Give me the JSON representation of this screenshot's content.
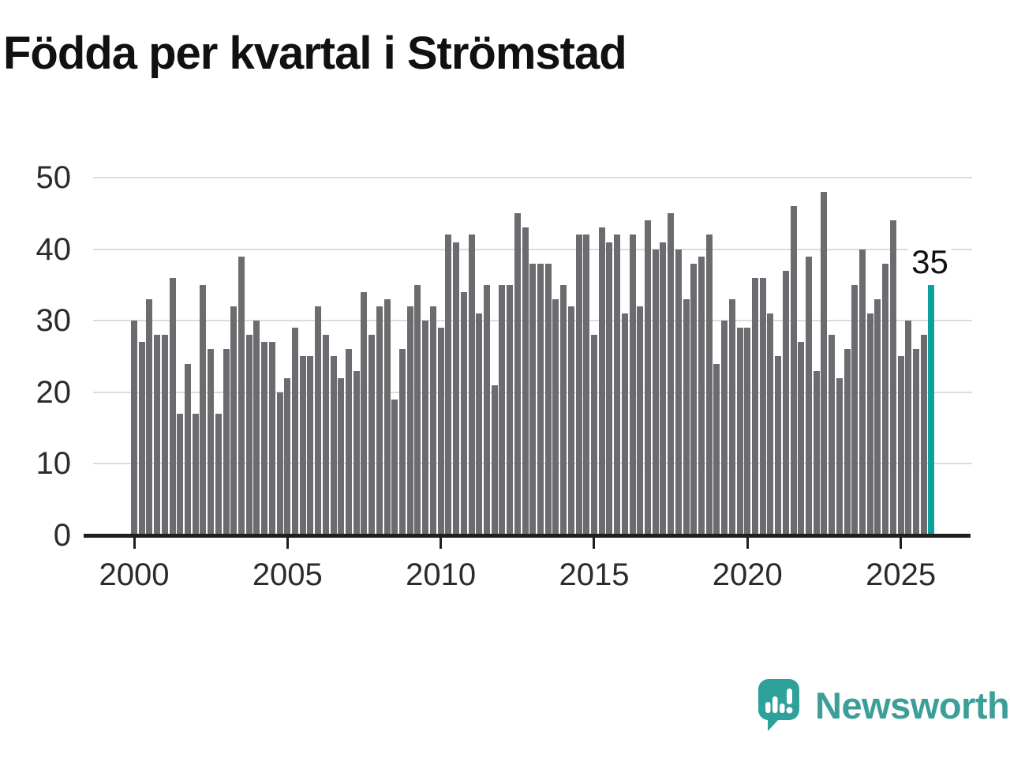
{
  "title": "Födda per kvartal i Strömstad",
  "chart_data": {
    "type": "bar",
    "title": "Födda per kvartal i Strömstad",
    "xlabel": "",
    "ylabel": "",
    "ylim": [
      0,
      50
    ],
    "grid": "horizontal",
    "y_ticks": [
      0,
      10,
      20,
      30,
      40,
      50
    ],
    "x_tick_labels": [
      "2000",
      "2005",
      "2010",
      "2015",
      "2020",
      "2025"
    ],
    "x_tick_bar_indices": [
      0,
      20,
      40,
      60,
      80,
      100
    ],
    "period_start": "2000-Q1",
    "period_frequency": "quarterly",
    "values": [
      30,
      27,
      33,
      28,
      28,
      36,
      17,
      24,
      17,
      35,
      26,
      17,
      26,
      32,
      39,
      28,
      30,
      27,
      27,
      20,
      22,
      29,
      25,
      25,
      32,
      28,
      25,
      22,
      26,
      23,
      34,
      28,
      32,
      33,
      19,
      26,
      32,
      35,
      30,
      32,
      29,
      42,
      41,
      34,
      42,
      31,
      35,
      21,
      35,
      35,
      45,
      43,
      38,
      38,
      38,
      33,
      35,
      32,
      42,
      42,
      28,
      43,
      41,
      42,
      31,
      42,
      32,
      44,
      40,
      41,
      45,
      40,
      33,
      38,
      39,
      42,
      24,
      30,
      33,
      29,
      29,
      36,
      36,
      31,
      25,
      37,
      46,
      27,
      39,
      23,
      48,
      28,
      22,
      26,
      35,
      40,
      31,
      33,
      38,
      44,
      25,
      30,
      26,
      28,
      35
    ],
    "highlight_index": 104,
    "highlight_value_label": "35",
    "bar_color": "#6c6c70",
    "highlight_color": "#0aa39c",
    "gridline_color": "#dcdcdc",
    "axis_color": "#1f1f1f",
    "legend": "none"
  },
  "annotation": {
    "last_value_label": "35"
  },
  "logo": {
    "text": "Newsworthy",
    "color": "#3b9e97",
    "icon": "speech-bubble-bar-chart-icon"
  }
}
